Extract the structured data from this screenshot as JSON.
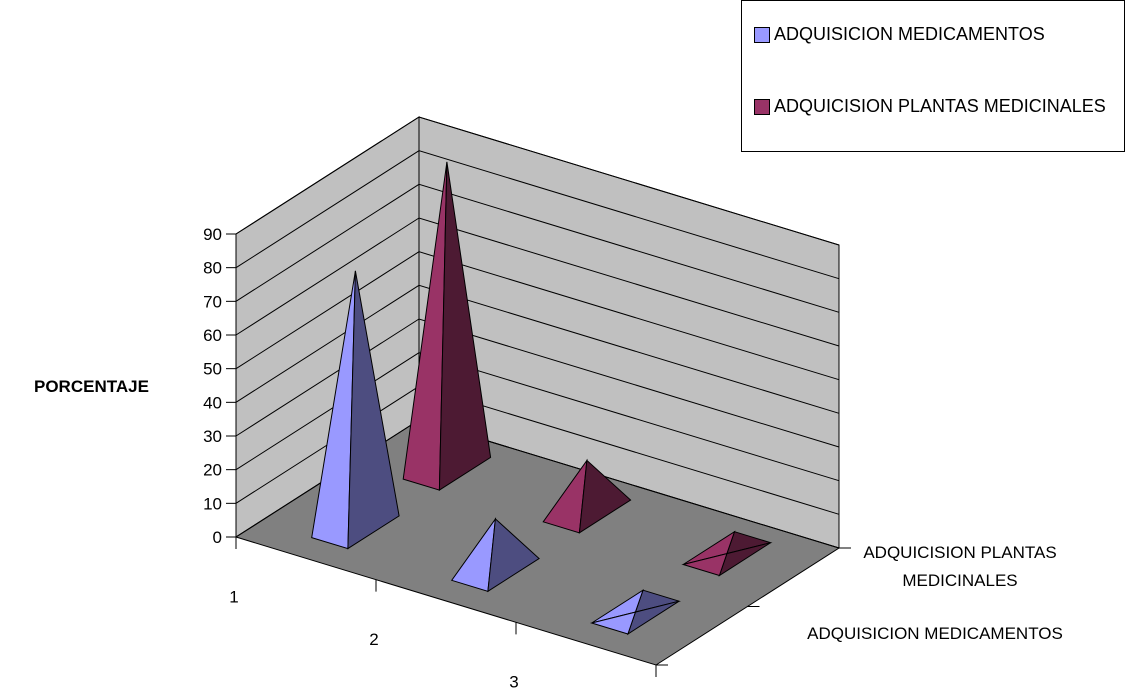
{
  "chart_data": {
    "type": "bar",
    "subtype": "3d-pyramid",
    "title": "",
    "ylabel": "PORCENTAJE",
    "xlabel": "",
    "ylim": [
      0,
      90
    ],
    "yticks": [
      0,
      10,
      20,
      30,
      40,
      50,
      60,
      70,
      80,
      90
    ],
    "categories": [
      "1",
      "2",
      "3"
    ],
    "series": [
      {
        "name": "ADQUISICION MEDICAMENTOS",
        "values": [
          76,
          15,
          0
        ],
        "color": "#9999ff"
      },
      {
        "name": "ADQUICISION PLANTAS MEDICINALES",
        "values": [
          91,
          15,
          0
        ],
        "color": "#993366"
      }
    ],
    "depth_labels": [
      "ADQUICISION PLANTAS MEDICINALES",
      "ADQUISICION MEDICAMENTOS"
    ],
    "legend_position": "top-right",
    "grid": true
  }
}
